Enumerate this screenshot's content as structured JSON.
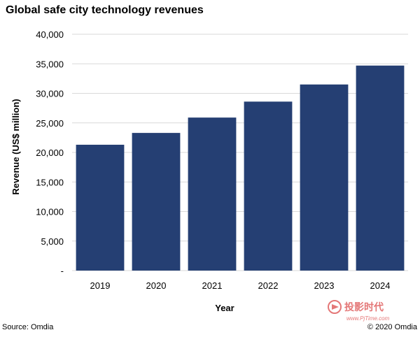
{
  "chart_data": {
    "type": "bar",
    "title": "Global safe city technology revenues",
    "xlabel": "Year",
    "ylabel": "Revenue (US$ million)",
    "categories": [
      "2019",
      "2020",
      "2021",
      "2022",
      "2023",
      "2024"
    ],
    "values": [
      21300,
      23300,
      25900,
      28600,
      31500,
      34700
    ],
    "ylim": [
      0,
      40000
    ],
    "yticks": [
      0,
      5000,
      10000,
      15000,
      20000,
      25000,
      30000,
      35000,
      40000
    ],
    "ytick_labels": [
      "-",
      "5,000",
      "10,000",
      "15,000",
      "20,000",
      "25,000",
      "30,000",
      "35,000",
      "40,000"
    ],
    "grid": true,
    "bar_color": "#253F73",
    "grid_color": "#D9D9D9"
  },
  "footer": {
    "source": "Source: Omdia",
    "copyright": "© 2020 Omdia"
  },
  "watermark": {
    "brand": "投影时代",
    "url": "www.PjTime.com",
    "color": "#E06060"
  }
}
